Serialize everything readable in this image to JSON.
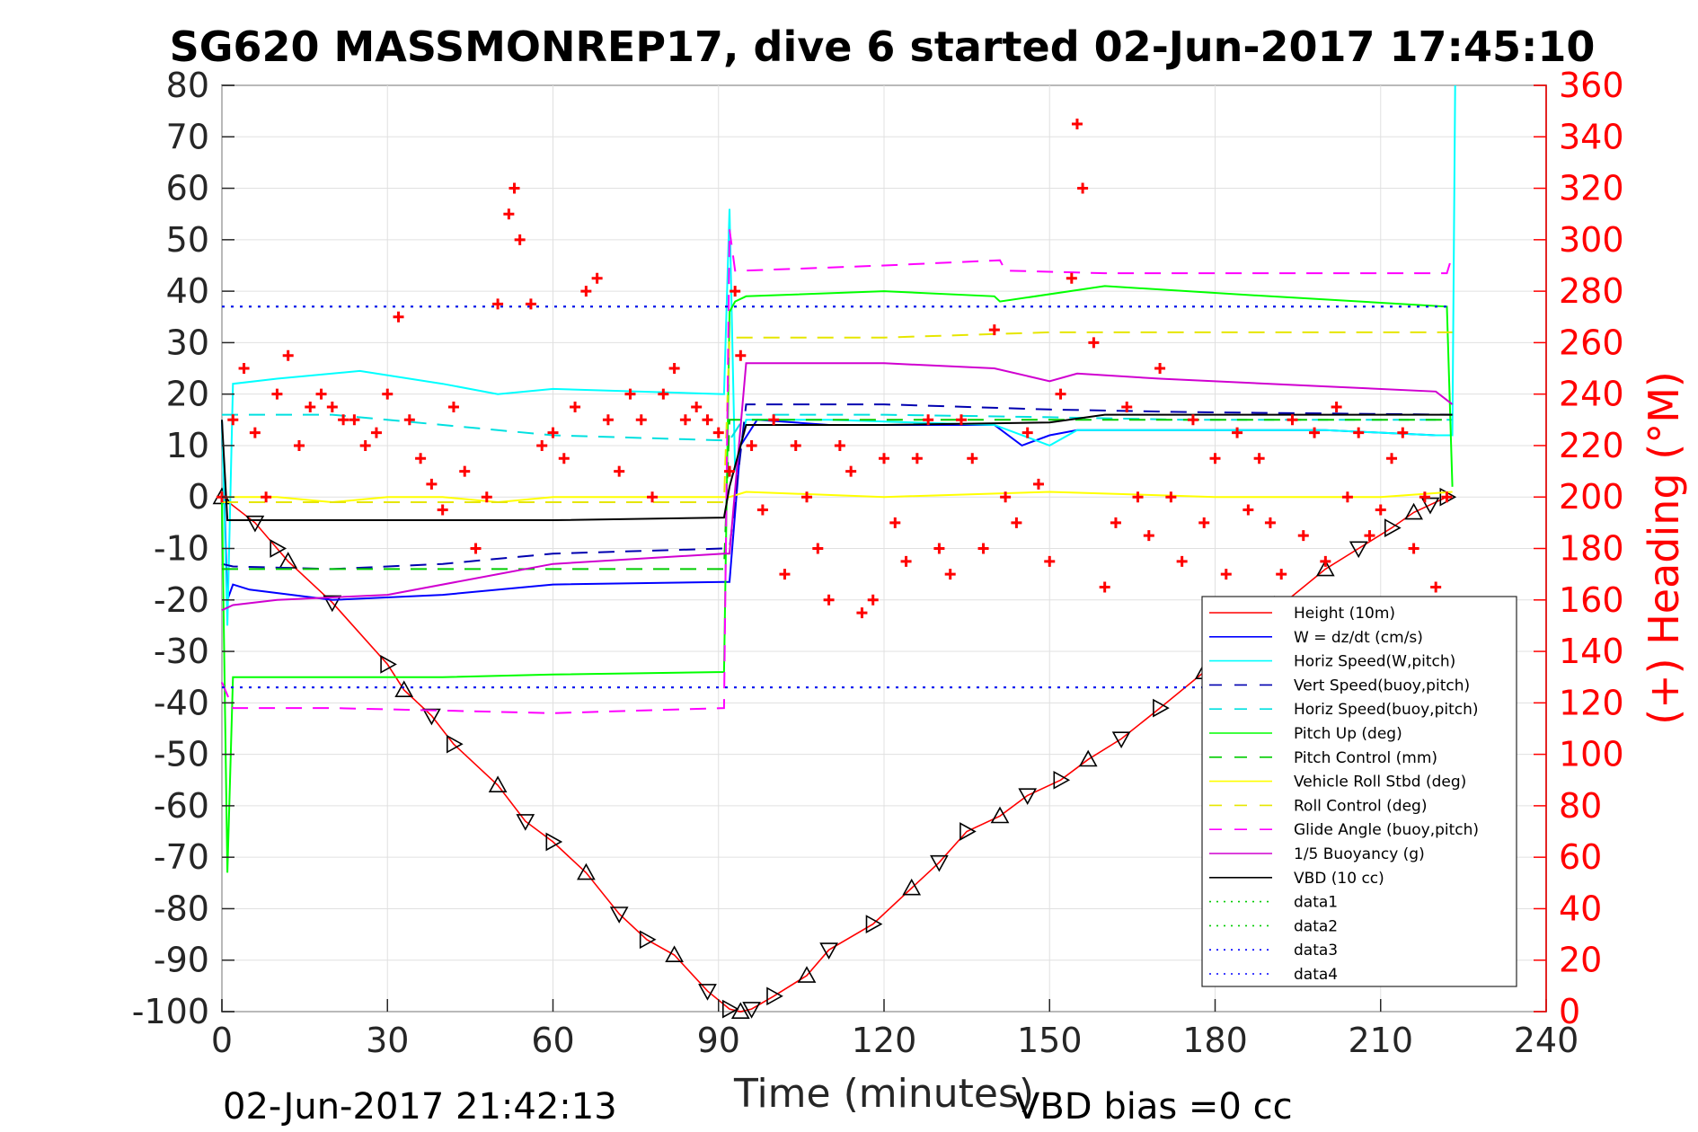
{
  "chart_data": {
    "type": "line",
    "title": "SG620 MASSMONREP17, dive 6 started 02-Jun-2017 17:45:10",
    "xlabel": "Time (minutes)",
    "ylabel": "",
    "y2label": "(+) Heading (°M)",
    "xlim": [
      0,
      240
    ],
    "ylim": [
      -100,
      80
    ],
    "y2lim": [
      0,
      360
    ],
    "xticks": [
      "0",
      "30",
      "60",
      "90",
      "120",
      "150",
      "180",
      "210",
      "240"
    ],
    "yticks": [
      "80",
      "70",
      "60",
      "50",
      "40",
      "30",
      "20",
      "10",
      "0",
      "-10",
      "-20",
      "-30",
      "-40",
      "-50",
      "-60",
      "-70",
      "-80",
      "-90",
      "-100"
    ],
    "y2ticks": [
      "360",
      "340",
      "320",
      "300",
      "280",
      "260",
      "240",
      "220",
      "200",
      "180",
      "160",
      "140",
      "120",
      "100",
      "80",
      "60",
      "40",
      "20",
      "0"
    ],
    "grid": true,
    "legend_position": "bottom-right",
    "footer_left": "02-Jun-2017 21:42:13",
    "footer_right": "VBD bias =0 cc",
    "legend": [
      {
        "label": "Height (10m)",
        "color": "#ff0000",
        "dash": "solid"
      },
      {
        "label": "W = dz/dt (cm/s)",
        "color": "#0000ff",
        "dash": "solid"
      },
      {
        "label": "Horiz Speed(W,pitch)",
        "color": "#00ffff",
        "dash": "solid"
      },
      {
        "label": "Vert Speed(buoy,pitch)",
        "color": "#0000b0",
        "dash": "dashed"
      },
      {
        "label": "Horiz Speed(buoy,pitch)",
        "color": "#00e0e0",
        "dash": "dashed"
      },
      {
        "label": "Pitch Up (deg)",
        "color": "#00ff00",
        "dash": "solid"
      },
      {
        "label": "Pitch Control (mm)",
        "color": "#00cc00",
        "dash": "dashed"
      },
      {
        "label": "Vehicle Roll Stbd (deg)",
        "color": "#ffff00",
        "dash": "solid"
      },
      {
        "label": "Roll Control (deg)",
        "color": "#e6e600",
        "dash": "dashed"
      },
      {
        "label": "Glide Angle (buoy,pitch)",
        "color": "#ff00ff",
        "dash": "dashed"
      },
      {
        "label": "1/5 Buoyancy (g)",
        "color": "#d000d0",
        "dash": "solid"
      },
      {
        "label": "VBD (10 cc)",
        "color": "#000000",
        "dash": "solid"
      },
      {
        "label": "data1",
        "color": "#00cc00",
        "dash": "dotted"
      },
      {
        "label": "data2",
        "color": "#00cc00",
        "dash": "dotted"
      },
      {
        "label": "data3",
        "color": "#0000ff",
        "dash": "dotted"
      },
      {
        "label": "data4",
        "color": "#0000ff",
        "dash": "dotted"
      }
    ],
    "series": [
      {
        "name": "Height (10m)",
        "axis": "left",
        "color": "#ff0000",
        "dash": "solid",
        "markers": "triangles",
        "x": [
          0,
          6,
          10,
          12,
          20,
          30,
          33,
          38,
          42,
          50,
          55,
          60,
          66,
          72,
          77,
          82,
          88,
          92,
          94,
          96,
          100,
          106,
          110,
          118,
          125,
          130,
          135,
          141,
          146,
          152,
          157,
          163,
          170,
          178,
          185,
          192,
          200,
          206,
          212,
          216,
          219,
          222
        ],
        "y": [
          0,
          -5,
          -10,
          -12.5,
          -20.5,
          -32.5,
          -37.5,
          -42.5,
          -48,
          -56,
          -63,
          -67,
          -73,
          -81,
          -86,
          -89,
          -96,
          -99.5,
          -100,
          -99.5,
          -97,
          -93,
          -88,
          -83,
          -76,
          -71,
          -65,
          -62,
          -58,
          -55,
          -51,
          -47,
          -41,
          -34,
          -28,
          -21,
          -14,
          -10,
          -6,
          -3,
          -1.5,
          0
        ]
      },
      {
        "name": "W = dz/dt (cm/s)",
        "axis": "left",
        "color": "#0000ff",
        "dash": "solid",
        "x": [
          0,
          1,
          2,
          5,
          20,
          40,
          60,
          91,
          92,
          94,
          97,
          110,
          140,
          145,
          150,
          155,
          170,
          200,
          220,
          223
        ],
        "y": [
          15,
          -20,
          -17,
          -18,
          -20,
          -19,
          -17,
          -16.5,
          -16.5,
          10,
          15,
          14,
          14,
          10,
          12,
          13,
          13,
          13,
          12,
          12
        ]
      },
      {
        "name": "Horiz Speed(W,pitch)",
        "axis": "left",
        "color": "#00ffff",
        "dash": "solid",
        "x": [
          0,
          1,
          2,
          10,
          25,
          40,
          50,
          60,
          91,
          92,
          93,
          95,
          110,
          140,
          150,
          155,
          170,
          200,
          220,
          223,
          223.5
        ],
        "y": [
          15,
          -25,
          22,
          23,
          24.5,
          22,
          20,
          21,
          20,
          56,
          5,
          15,
          15,
          14,
          10,
          13,
          13,
          13,
          12,
          12,
          80
        ]
      },
      {
        "name": "Vert Speed(buoy,pitch)",
        "axis": "left",
        "color": "#0000b0",
        "dash": "dashed",
        "x": [
          0,
          2,
          20,
          40,
          60,
          91,
          92,
          95,
          120,
          150,
          175,
          223
        ],
        "y": [
          -13,
          -13.5,
          -14,
          -13,
          -11,
          -10,
          -10,
          18,
          18,
          17,
          16.5,
          16
        ]
      },
      {
        "name": "Horiz Speed(buoy,pitch)",
        "axis": "left",
        "color": "#00e0e0",
        "dash": "dashed",
        "x": [
          0,
          2,
          20,
          40,
          60,
          91,
          92,
          95,
          120,
          150,
          175,
          223
        ],
        "y": [
          16,
          16,
          16,
          14,
          12,
          11,
          11,
          16,
          16,
          15.5,
          15,
          15
        ]
      },
      {
        "name": "Pitch Up (deg)",
        "axis": "left",
        "color": "#00ff00",
        "dash": "solid",
        "x": [
          0,
          1,
          2,
          10,
          40,
          60,
          91,
          92,
          93,
          95,
          120,
          140,
          141,
          160,
          190,
          222,
          223
        ],
        "y": [
          0,
          -73,
          -35,
          -35,
          -35,
          -34.5,
          -34,
          36,
          38,
          39,
          40,
          39,
          38,
          41,
          39,
          37,
          2
        ]
      },
      {
        "name": "Pitch Control (mm)",
        "axis": "left",
        "color": "#00cc00",
        "dash": "dashed",
        "x": [
          0,
          2,
          20,
          40,
          60,
          91,
          92,
          95,
          120,
          150,
          175,
          223
        ],
        "y": [
          -14,
          -14,
          -14,
          -14,
          -14,
          -14,
          15,
          15,
          15,
          15,
          15,
          15
        ]
      },
      {
        "name": "Vehicle Roll Stbd (deg)",
        "axis": "left",
        "color": "#ffff00",
        "dash": "solid",
        "x": [
          0,
          5,
          10,
          20,
          30,
          40,
          50,
          60,
          70,
          80,
          91,
          92,
          95,
          120,
          150,
          180,
          210,
          223
        ],
        "y": [
          0,
          0,
          0,
          -1,
          0,
          0,
          -1,
          0,
          0,
          0,
          0,
          0,
          1,
          0,
          1,
          0,
          0,
          1
        ]
      },
      {
        "name": "Roll Control (deg)",
        "axis": "left",
        "color": "#e6e600",
        "dash": "dashed",
        "x": [
          0,
          30,
          60,
          91,
          92,
          95,
          120,
          150,
          180,
          223
        ],
        "y": [
          -1,
          -1,
          -1,
          -1,
          31,
          31,
          31,
          32,
          32,
          32
        ]
      },
      {
        "name": "Glide Angle (buoy,pitch)",
        "axis": "left",
        "color": "#ff00ff",
        "dash": "dashed",
        "x": [
          0,
          2,
          20,
          40,
          60,
          91,
          92,
          93,
          95,
          120,
          141,
          142,
          160,
          190,
          222,
          223
        ],
        "y": [
          -36,
          -41,
          -41,
          -41.5,
          -42,
          -41,
          52,
          44,
          44,
          45,
          46,
          44,
          43.5,
          43.5,
          43.5,
          47
        ]
      },
      {
        "name": "1/5 Buoyancy (g)",
        "axis": "left",
        "color": "#d000d0",
        "dash": "solid",
        "x": [
          0,
          2,
          10,
          30,
          50,
          60,
          91,
          92,
          95,
          120,
          140,
          150,
          155,
          170,
          200,
          220,
          223
        ],
        "y": [
          -22,
          -21,
          -20,
          -19,
          -15,
          -13,
          -11,
          -11,
          26,
          26,
          25,
          22.5,
          24,
          23,
          21.5,
          20.5,
          18
        ]
      },
      {
        "name": "VBD (10 cc)",
        "axis": "left",
        "color": "#000000",
        "dash": "solid",
        "x": [
          0,
          1,
          20,
          60,
          91,
          92,
          95,
          120,
          150,
          160,
          223
        ],
        "y": [
          15,
          -4.5,
          -4.5,
          -4.5,
          -4,
          2,
          14,
          14,
          14.5,
          16,
          16
        ]
      },
      {
        "name": "data1",
        "axis": "left",
        "color": "#00cc00",
        "dash": "dotted",
        "x": [
          0,
          223
        ],
        "y": [
          37,
          37
        ]
      },
      {
        "name": "data2",
        "axis": "left",
        "color": "#00cc00",
        "dash": "dotted",
        "x": [
          0,
          223
        ],
        "y": [
          -37,
          -37
        ]
      },
      {
        "name": "data3",
        "axis": "left",
        "color": "#0000ff",
        "dash": "dotted",
        "x": [
          0,
          223
        ],
        "y": [
          37,
          37
        ]
      },
      {
        "name": "data4",
        "axis": "left",
        "color": "#0000ff",
        "dash": "dotted",
        "x": [
          0,
          223
        ],
        "y": [
          -37,
          -37
        ]
      },
      {
        "name": "(+) Heading (°M)",
        "axis": "right",
        "color": "#ff0000",
        "dash": "none",
        "markers": "plus",
        "x": [
          0,
          2,
          4,
          6,
          8,
          10,
          12,
          14,
          16,
          18,
          20,
          22,
          24,
          26,
          28,
          30,
          32,
          34,
          36,
          38,
          40,
          42,
          44,
          46,
          48,
          50,
          52,
          53,
          54,
          56,
          58,
          60,
          62,
          64,
          66,
          68,
          70,
          72,
          74,
          76,
          78,
          80,
          82,
          84,
          86,
          88,
          90,
          92,
          93,
          94,
          96,
          98,
          100,
          102,
          104,
          106,
          108,
          110,
          112,
          114,
          116,
          118,
          120,
          122,
          124,
          126,
          128,
          130,
          132,
          134,
          136,
          138,
          140,
          142,
          144,
          146,
          148,
          150,
          152,
          154,
          155,
          156,
          158,
          160,
          162,
          164,
          166,
          168,
          170,
          172,
          174,
          176,
          178,
          180,
          182,
          184,
          186,
          188,
          190,
          192,
          194,
          196,
          198,
          200,
          202,
          204,
          206,
          208,
          210,
          212,
          214,
          216,
          218,
          220,
          222
        ],
        "y": [
          200,
          230,
          250,
          225,
          200,
          240,
          255,
          220,
          235,
          240,
          235,
          230,
          230,
          220,
          225,
          240,
          270,
          230,
          215,
          205,
          195,
          235,
          210,
          180,
          200,
          275,
          310,
          320,
          300,
          275,
          220,
          225,
          215,
          235,
          280,
          285,
          230,
          210,
          240,
          230,
          200,
          240,
          250,
          230,
          235,
          230,
          225,
          210,
          280,
          255,
          220,
          195,
          230,
          170,
          220,
          200,
          180,
          160,
          220,
          210,
          155,
          160,
          215,
          190,
          175,
          215,
          230,
          180,
          170,
          230,
          215,
          180,
          265,
          200,
          190,
          225,
          205,
          175,
          240,
          285,
          345,
          320,
          260,
          165,
          190,
          235,
          200,
          185,
          250,
          200,
          175,
          230,
          190,
          215,
          170,
          225,
          195,
          215,
          190,
          170,
          230,
          185,
          225,
          175,
          235,
          200,
          225,
          185,
          195,
          215,
          225,
          180,
          200,
          165,
          200
        ]
      }
    ]
  }
}
